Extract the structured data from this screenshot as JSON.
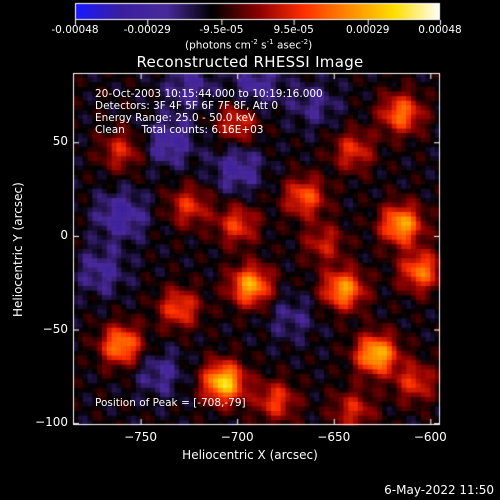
{
  "colorbar": {
    "tick_labels": [
      "-0.00048",
      "-0.00029",
      "-9.5e-05",
      "9.5e-05",
      "0.00029",
      "0.00048"
    ],
    "tick_values": [
      -0.00048,
      -0.00029,
      -9.5e-05,
      9.5e-05,
      0.00029,
      0.00048
    ],
    "range": [
      -0.00048,
      0.00048
    ],
    "units_prefix": "(photons cm",
    "units_exp1": "-2",
    "units_mid": " s",
    "units_exp2": "-1",
    "units_mid2": " asec",
    "units_exp3": "-2",
    "units_suffix": ")"
  },
  "chart_data": {
    "type": "heatmap",
    "title": "Reconstructed RHESSI Image",
    "xlabel": "Heliocentric X (arcsec)",
    "ylabel": "Heliocentric Y (arcsec)",
    "xlim": [
      -785,
      -595
    ],
    "ylim": [
      -101,
      87
    ],
    "x_ticks": [
      -750,
      -700,
      -650,
      -600
    ],
    "y_ticks": [
      50,
      0,
      -50,
      -100
    ],
    "x_tick_labels": [
      "−750",
      "−700",
      "−650",
      "−600"
    ],
    "y_tick_labels": [
      "50",
      "0",
      "−50",
      "−100"
    ],
    "colormap": [
      "#1a1aff",
      "#3a1fa0",
      "#4a2a9a",
      "#000000",
      "#8a0000",
      "#ff3000",
      "#ff8c00",
      "#ffe000",
      "#ffffff"
    ],
    "hot_spots": [
      {
        "x": -707,
        "y": -80,
        "value": 0.00048
      },
      {
        "x": -628,
        "y": -65,
        "value": 0.00044
      },
      {
        "x": -645,
        "y": -30,
        "value": 0.00038
      },
      {
        "x": -693,
        "y": -28,
        "value": 0.0004
      },
      {
        "x": -760,
        "y": -60,
        "value": 0.00036
      },
      {
        "x": -615,
        "y": 5,
        "value": 0.0004
      },
      {
        "x": -605,
        "y": -20,
        "value": 0.00032
      },
      {
        "x": -615,
        "y": 65,
        "value": 0.00032
      },
      {
        "x": -730,
        "y": -40,
        "value": 0.00026
      },
      {
        "x": -665,
        "y": 20,
        "value": 0.00028
      },
      {
        "x": -700,
        "y": 5,
        "value": 0.00024
      },
      {
        "x": -725,
        "y": 15,
        "value": 0.00022
      },
      {
        "x": -700,
        "y": 60,
        "value": 0.00022
      },
      {
        "x": -760,
        "y": 45,
        "value": 0.0002
      },
      {
        "x": -640,
        "y": 45,
        "value": 0.00022
      },
      {
        "x": -680,
        "y": -90,
        "value": 0.00024
      },
      {
        "x": -640,
        "y": -95,
        "value": 0.0002
      },
      {
        "x": -608,
        "y": -80,
        "value": 0.00022
      },
      {
        "x": -655,
        "y": -5,
        "value": 0.00018
      }
    ],
    "cold_spots": [
      {
        "x": -735,
        "y": 50,
        "value": -0.00028
      },
      {
        "x": -700,
        "y": 35,
        "value": -0.00026
      },
      {
        "x": -760,
        "y": 10,
        "value": -0.0003
      },
      {
        "x": -690,
        "y": 80,
        "value": -0.00024
      },
      {
        "x": -740,
        "y": -75,
        "value": -0.0002
      },
      {
        "x": -660,
        "y": 70,
        "value": -0.00018
      },
      {
        "x": -725,
        "y": 80,
        "value": -0.00022
      },
      {
        "x": -672,
        "y": -45,
        "value": -0.00016
      },
      {
        "x": -770,
        "y": -20,
        "value": -0.00022
      }
    ]
  },
  "annotations": {
    "line1": "20-Oct-2003 10:15:44.000 to 10:19:16.000",
    "line2": "Detectors: 3F 4F 5F 6F 7F 8F, Att 0",
    "line3": "Energy Range: 25.0 - 50.0 keV",
    "line4": "Clean     Total counts: 6.16E+03",
    "peak": "Position of Peak = [-708,-79]"
  },
  "footer": {
    "date": "6-May-2022 11:50"
  }
}
